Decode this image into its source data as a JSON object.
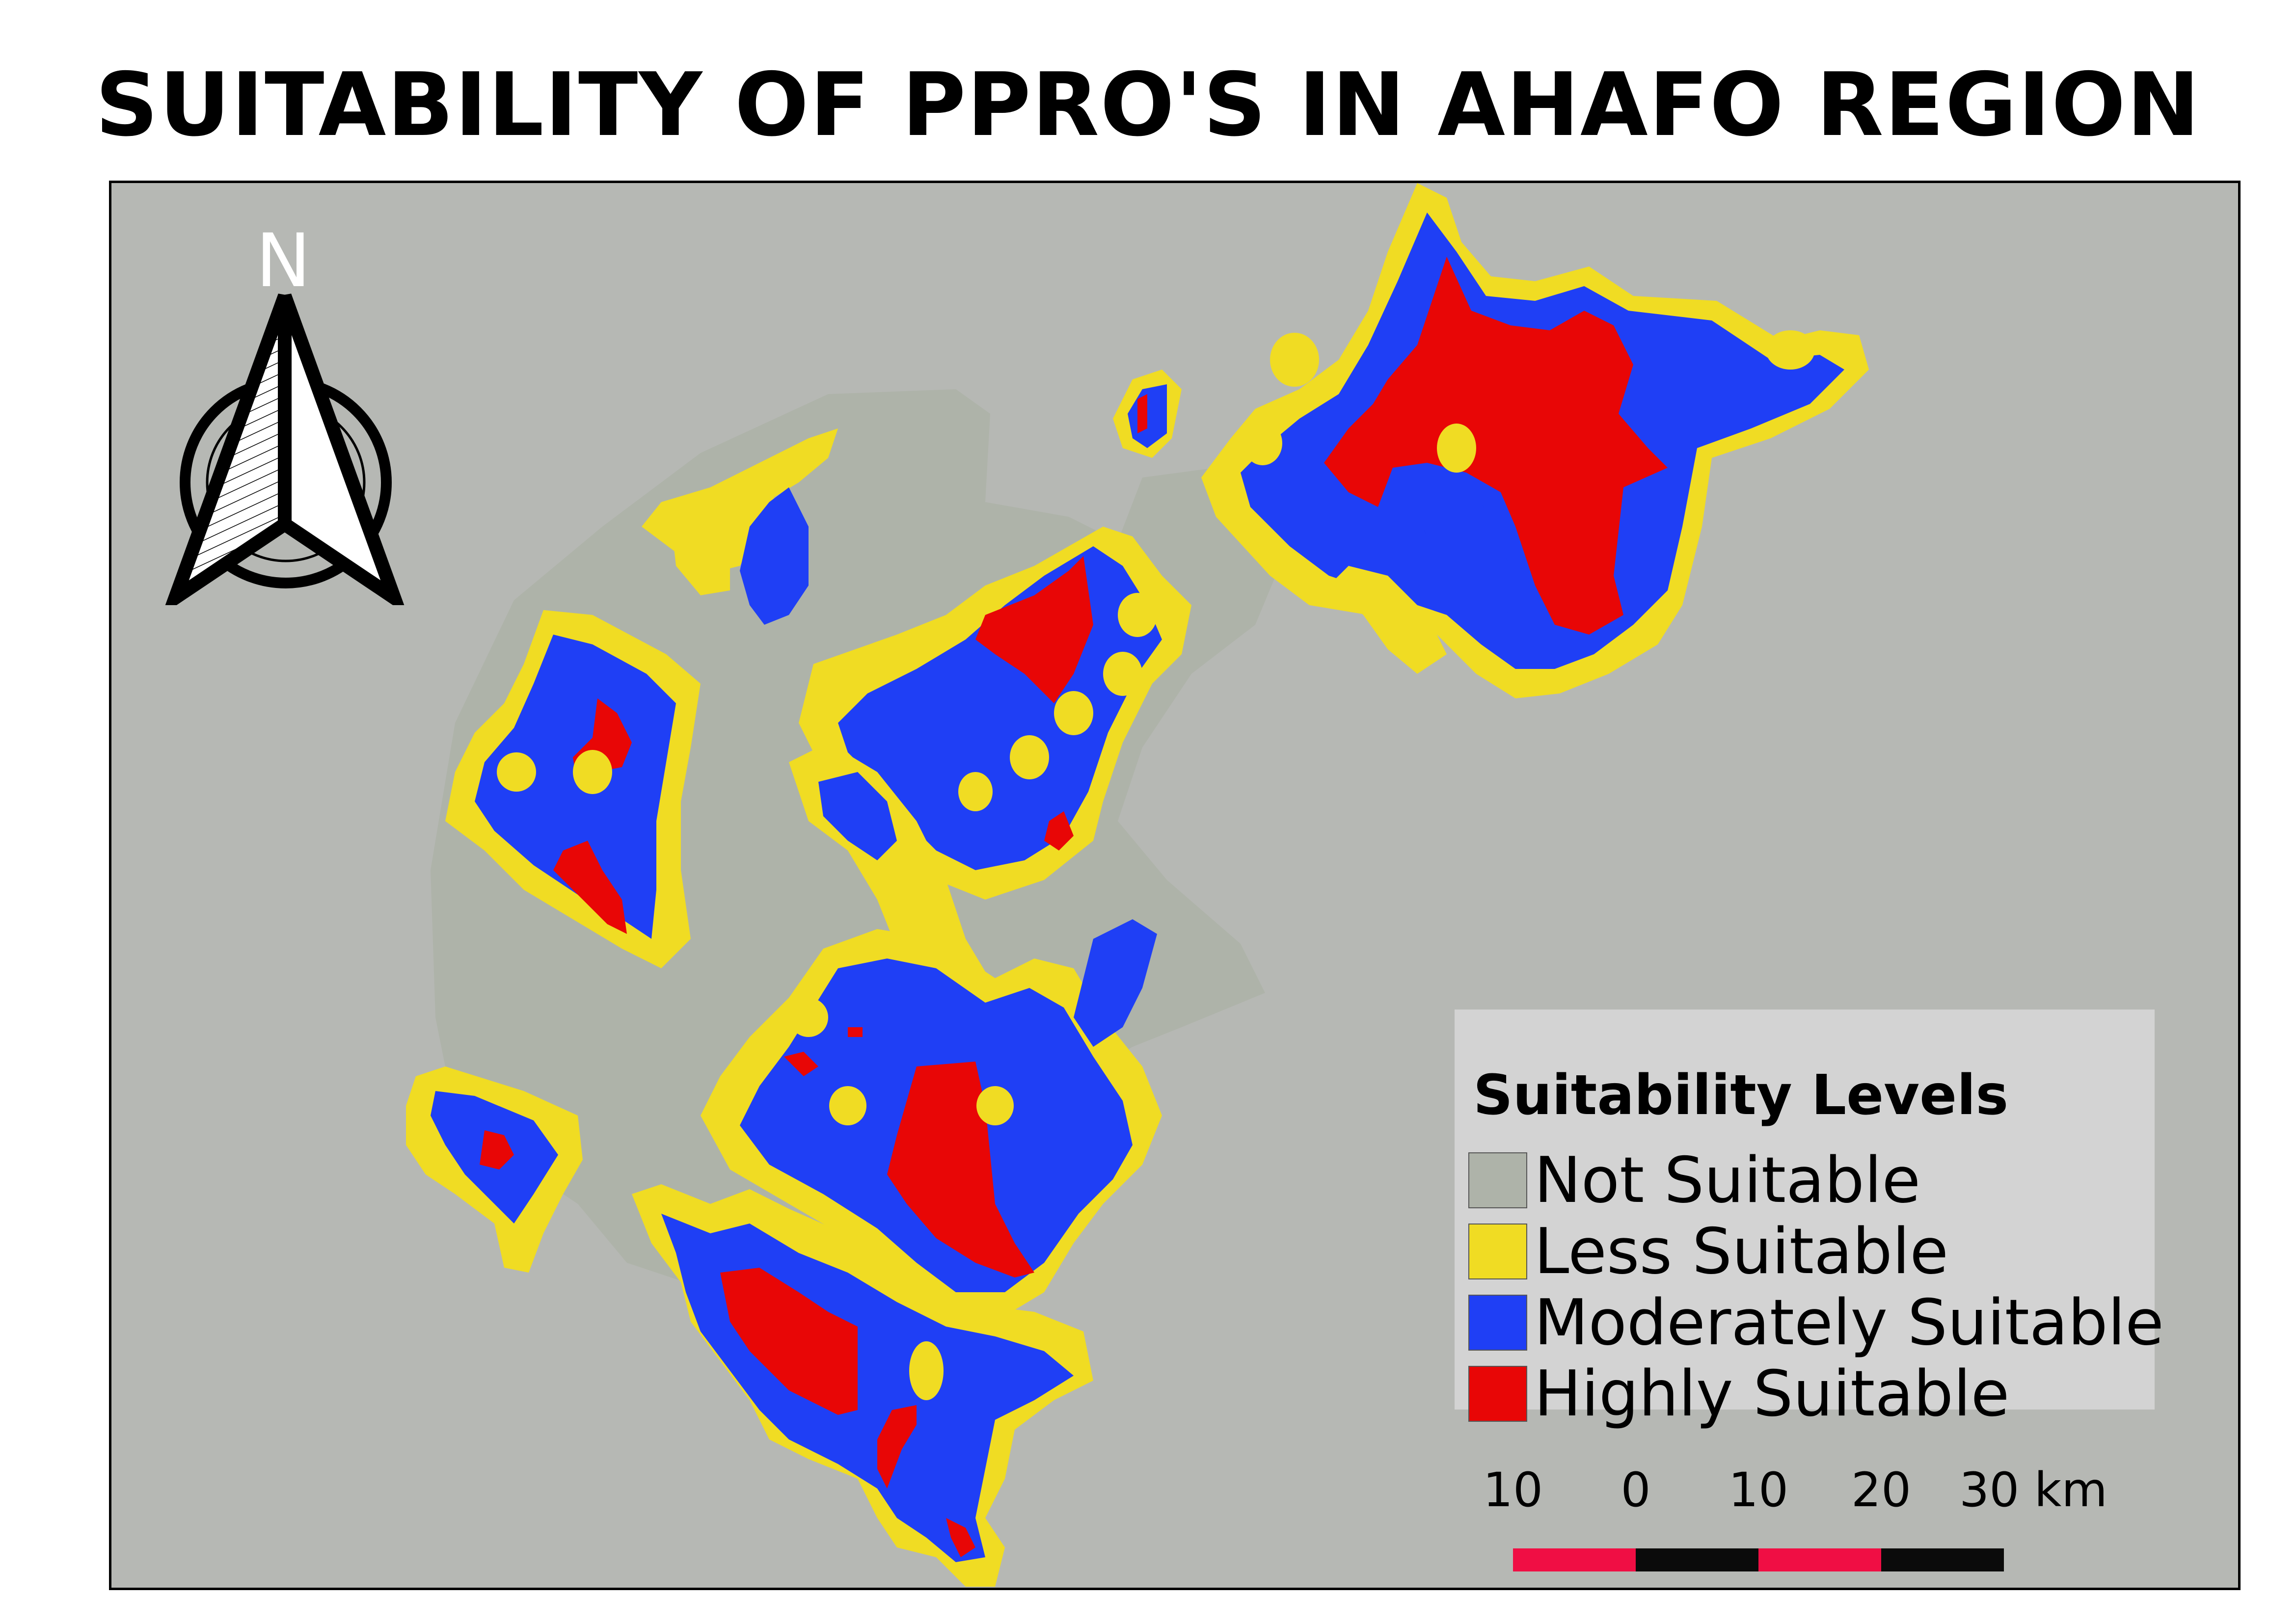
{
  "title": "SUITABILITY OF PPRO'S IN AHAFO REGION",
  "north_arrow": {
    "label": "N",
    "icon": "north-arrow-icon"
  },
  "legend": {
    "title": "Suitability Levels",
    "items": [
      {
        "label": "Not Suitable",
        "color": "#aeb3a9"
      },
      {
        "label": "Less Suitable",
        "color": "#f0dc23"
      },
      {
        "label": "Moderately Suitable",
        "color": "#1f3ff5"
      },
      {
        "label": "Highly Suitable",
        "color": "#e80606"
      }
    ]
  },
  "scale_bar": {
    "labels": [
      "10",
      "0",
      "10",
      "20",
      "30 km"
    ],
    "colors": [
      "#f00e44",
      "#0b0b0b",
      "#f00e44",
      "#0b0b0b"
    ]
  },
  "colors": {
    "background": "#b6b8b4",
    "not_suitable": "#aeb3a9",
    "less_suitable": "#f0dc23",
    "moderately_suitable": "#1f3ff5",
    "highly_suitable": "#e80606"
  }
}
